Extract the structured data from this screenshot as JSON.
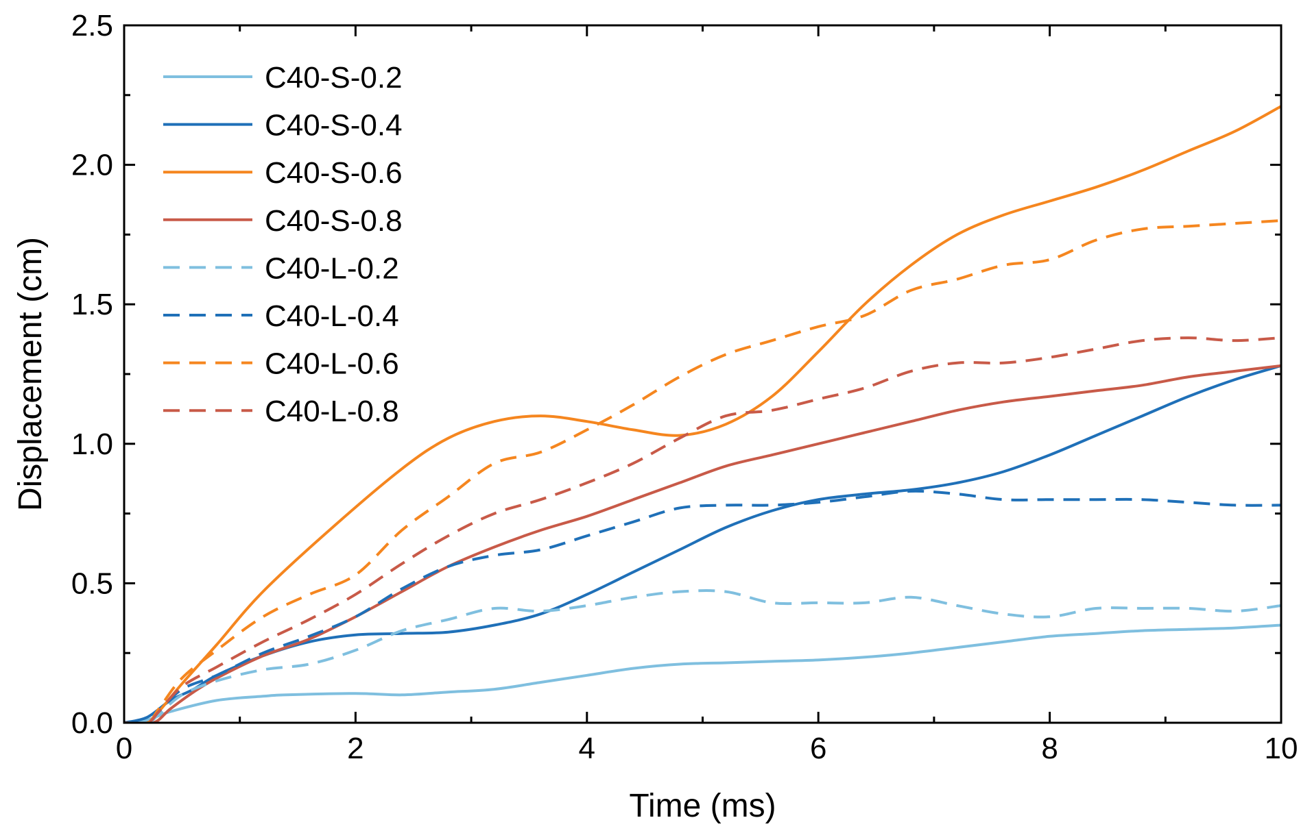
{
  "chart_data": {
    "type": "line",
    "title": "",
    "xlabel": "Time (ms)",
    "ylabel": "Displacement (cm)",
    "xlim": [
      0,
      10
    ],
    "ylim": [
      0,
      2.5
    ],
    "xticks": [
      0,
      2,
      4,
      6,
      8,
      10
    ],
    "xtick_labels": [
      "0",
      "2",
      "4",
      "6",
      "8",
      "10"
    ],
    "yticks": [
      0,
      0.5,
      1.0,
      1.5,
      2.0,
      2.5
    ],
    "ytick_labels": [
      "0.0",
      "0.5",
      "1.0",
      "1.5",
      "2.0",
      "2.5"
    ],
    "grid": false,
    "legend_position": "top-left",
    "series": [
      {
        "name": "C40-S-0.2",
        "color": "#7fbfdf",
        "dash": "solid",
        "x": [
          0,
          0.2,
          0.4,
          0.8,
          1.2,
          1.4,
          2.0,
          2.4,
          2.8,
          3.2,
          3.6,
          4.0,
          4.4,
          4.8,
          5.2,
          5.6,
          6.0,
          6.4,
          6.8,
          7.2,
          7.6,
          8.0,
          8.4,
          8.8,
          9.2,
          9.6,
          10.0
        ],
        "y": [
          0,
          0.01,
          0.04,
          0.08,
          0.095,
          0.1,
          0.105,
          0.1,
          0.11,
          0.12,
          0.145,
          0.17,
          0.195,
          0.21,
          0.215,
          0.22,
          0.225,
          0.235,
          0.25,
          0.27,
          0.29,
          0.31,
          0.32,
          0.33,
          0.335,
          0.34,
          0.35
        ]
      },
      {
        "name": "C40-S-0.4",
        "color": "#1f70b8",
        "dash": "solid",
        "x": [
          0,
          0.2,
          0.4,
          0.6,
          0.8,
          1.2,
          1.6,
          2.0,
          2.4,
          2.8,
          3.2,
          3.6,
          4.0,
          4.4,
          4.8,
          5.2,
          5.6,
          6.0,
          6.4,
          6.8,
          7.2,
          7.6,
          8.0,
          8.4,
          8.8,
          9.2,
          9.6,
          10.0
        ],
        "y": [
          0,
          0.02,
          0.08,
          0.12,
          0.17,
          0.24,
          0.29,
          0.315,
          0.32,
          0.325,
          0.35,
          0.39,
          0.46,
          0.54,
          0.62,
          0.7,
          0.76,
          0.8,
          0.82,
          0.835,
          0.86,
          0.9,
          0.96,
          1.03,
          1.1,
          1.17,
          1.23,
          1.28
        ]
      },
      {
        "name": "C40-S-0.6",
        "color": "#f5861f",
        "dash": "solid",
        "x": [
          0,
          0.2,
          0.3,
          0.5,
          0.8,
          1.2,
          1.8,
          2.4,
          2.8,
          3.2,
          3.6,
          4.0,
          4.4,
          4.8,
          5.2,
          5.6,
          6.0,
          6.4,
          6.8,
          7.2,
          7.6,
          8.0,
          8.4,
          8.8,
          9.2,
          9.6,
          10.0
        ],
        "y": [
          0,
          0.0,
          0.04,
          0.14,
          0.28,
          0.47,
          0.7,
          0.91,
          1.02,
          1.08,
          1.1,
          1.08,
          1.05,
          1.03,
          1.07,
          1.17,
          1.33,
          1.5,
          1.64,
          1.75,
          1.82,
          1.87,
          1.92,
          1.98,
          2.05,
          2.12,
          2.21
        ]
      },
      {
        "name": "C40-S-0.8",
        "color": "#c85a48",
        "dash": "solid",
        "x": [
          0,
          0.25,
          0.4,
          0.6,
          0.8,
          1.2,
          1.6,
          2.0,
          2.4,
          2.8,
          3.2,
          3.6,
          4.0,
          4.4,
          4.8,
          5.2,
          5.6,
          6.0,
          6.4,
          6.8,
          7.2,
          7.6,
          8.0,
          8.4,
          8.8,
          9.2,
          9.6,
          10.0
        ],
        "y": [
          0,
          0.0,
          0.05,
          0.11,
          0.16,
          0.24,
          0.3,
          0.38,
          0.47,
          0.56,
          0.63,
          0.69,
          0.74,
          0.8,
          0.86,
          0.92,
          0.96,
          1.0,
          1.04,
          1.08,
          1.12,
          1.15,
          1.17,
          1.19,
          1.21,
          1.24,
          1.26,
          1.28
        ]
      },
      {
        "name": "C40-L-0.2",
        "color": "#7fbfdf",
        "dash": "dashed",
        "x": [
          0,
          0.2,
          0.3,
          0.5,
          0.8,
          1.2,
          1.6,
          2.0,
          2.4,
          2.8,
          3.2,
          3.6,
          4.0,
          4.4,
          4.8,
          5.2,
          5.6,
          6.0,
          6.4,
          6.8,
          7.2,
          7.6,
          8.0,
          8.4,
          8.8,
          9.2,
          9.6,
          10.0
        ],
        "y": [
          0,
          0.0,
          0.03,
          0.1,
          0.15,
          0.19,
          0.21,
          0.26,
          0.33,
          0.37,
          0.41,
          0.4,
          0.42,
          0.45,
          0.47,
          0.47,
          0.43,
          0.43,
          0.43,
          0.45,
          0.42,
          0.39,
          0.38,
          0.41,
          0.41,
          0.41,
          0.4,
          0.42
        ]
      },
      {
        "name": "C40-L-0.4",
        "color": "#1f70b8",
        "dash": "dashed",
        "x": [
          0,
          0.2,
          0.3,
          0.5,
          0.8,
          1.2,
          1.6,
          2.0,
          2.4,
          2.8,
          3.2,
          3.6,
          4.0,
          4.4,
          4.8,
          5.2,
          5.6,
          6.0,
          6.4,
          6.8,
          7.2,
          7.6,
          8.0,
          8.4,
          8.8,
          9.2,
          9.6,
          10.0
        ],
        "y": [
          0,
          0.0,
          0.04,
          0.12,
          0.17,
          0.25,
          0.31,
          0.38,
          0.48,
          0.56,
          0.6,
          0.62,
          0.67,
          0.72,
          0.77,
          0.78,
          0.78,
          0.79,
          0.81,
          0.83,
          0.82,
          0.8,
          0.8,
          0.8,
          0.8,
          0.79,
          0.78,
          0.78
        ]
      },
      {
        "name": "C40-L-0.6",
        "color": "#f5861f",
        "dash": "dashed",
        "x": [
          0,
          0.2,
          0.3,
          0.5,
          0.8,
          1.2,
          1.6,
          2.0,
          2.4,
          2.8,
          3.2,
          3.6,
          4.0,
          4.4,
          4.8,
          5.2,
          5.6,
          6.0,
          6.4,
          6.8,
          7.2,
          7.6,
          8.0,
          8.4,
          8.8,
          9.2,
          9.6,
          10.0
        ],
        "y": [
          0,
          0.0,
          0.05,
          0.16,
          0.26,
          0.38,
          0.46,
          0.53,
          0.69,
          0.81,
          0.93,
          0.97,
          1.05,
          1.14,
          1.24,
          1.32,
          1.37,
          1.42,
          1.46,
          1.55,
          1.59,
          1.64,
          1.66,
          1.73,
          1.77,
          1.78,
          1.79,
          1.8
        ]
      },
      {
        "name": "C40-L-0.8",
        "color": "#c85a48",
        "dash": "dashed",
        "x": [
          0,
          0.2,
          0.3,
          0.5,
          0.8,
          1.2,
          1.6,
          2.0,
          2.4,
          2.8,
          3.2,
          3.6,
          4.0,
          4.4,
          4.8,
          5.2,
          5.6,
          6.0,
          6.4,
          6.8,
          7.2,
          7.6,
          8.0,
          8.4,
          8.8,
          9.2,
          9.6,
          10.0
        ],
        "y": [
          0,
          0.0,
          0.04,
          0.13,
          0.2,
          0.29,
          0.37,
          0.46,
          0.57,
          0.67,
          0.75,
          0.8,
          0.86,
          0.93,
          1.02,
          1.1,
          1.12,
          1.16,
          1.2,
          1.26,
          1.29,
          1.29,
          1.31,
          1.34,
          1.37,
          1.38,
          1.37,
          1.38
        ]
      }
    ]
  }
}
